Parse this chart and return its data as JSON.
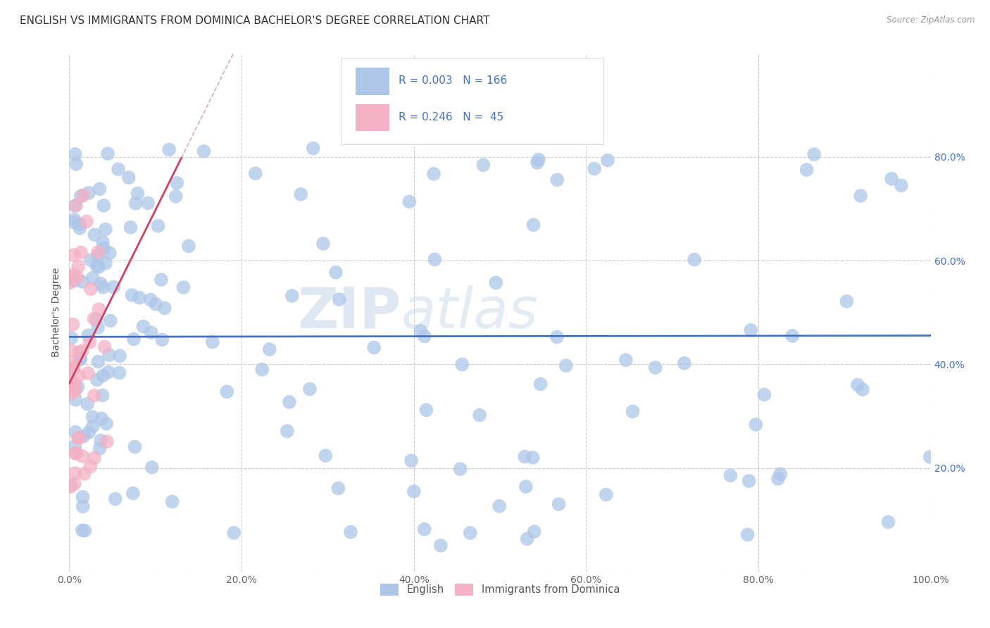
{
  "title": "ENGLISH VS IMMIGRANTS FROM DOMINICA BACHELOR'S DEGREE CORRELATION CHART",
  "source": "Source: ZipAtlas.com",
  "ylabel": "Bachelor's Degree",
  "xlim": [
    0.0,
    1.0
  ],
  "ylim": [
    0.0,
    1.0
  ],
  "xtick_vals": [
    0.0,
    0.2,
    0.4,
    0.6,
    0.8,
    1.0
  ],
  "ytick_vals": [
    0.2,
    0.4,
    0.6,
    0.8
  ],
  "xticklabels": [
    "0.0%",
    "20.0%",
    "40.0%",
    "60.0%",
    "80.0%",
    "100.0%"
  ],
  "yticklabels": [
    "20.0%",
    "40.0%",
    "60.0%",
    "80.0%"
  ],
  "english_color": "#adc6e8",
  "dominica_color": "#f4b0c4",
  "trendline_english_color": "#4472c4",
  "trendline_dominica_color": "#d04060",
  "trendline_dominica_dashed_color": "#d0b0b8",
  "yaxis_label_color": "#4472c4",
  "background_color": "#ffffff",
  "grid_color": "#cccccc",
  "title_fontsize": 11,
  "axis_label_fontsize": 10,
  "tick_fontsize": 10,
  "watermark_zip_color": "#c8d8ea",
  "watermark_atlas_color": "#c8d8ea"
}
